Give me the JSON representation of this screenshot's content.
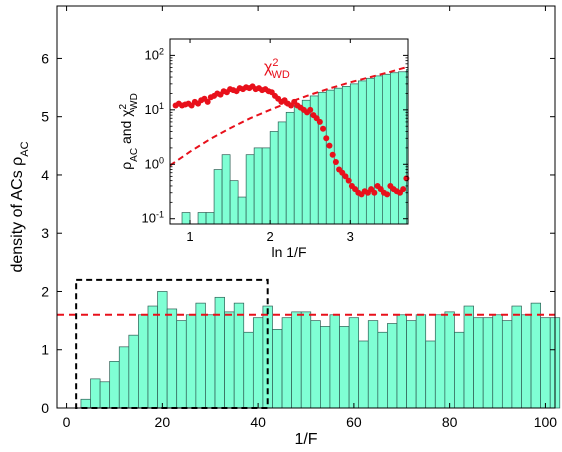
{
  "colors": {
    "bar_fill": "#7FFFD4",
    "bar_edge": "#2E5E54",
    "fit_line": "#E8101B",
    "box": "#000000",
    "points": "#E8101B"
  },
  "chart_data": [
    {
      "type": "bar",
      "xlabel": "1/F",
      "ylabel": "density of ACs  ρ",
      "ylabel_sub": "AC",
      "xlim": [
        -2,
        102
      ],
      "ylim": [
        0,
        6.9
      ],
      "xticks": [
        "0",
        "20",
        "40",
        "60",
        "80",
        "100"
      ],
      "yticks": [
        "0",
        "1",
        "2",
        "3",
        "4",
        "5",
        "6"
      ],
      "bin_width": 2,
      "bin_start": 3,
      "values": [
        0.15,
        0.5,
        0.45,
        0.8,
        1.05,
        1.25,
        1.6,
        1.75,
        2.0,
        1.7,
        1.5,
        1.6,
        1.8,
        1.6,
        1.9,
        1.65,
        1.8,
        1.3,
        1.55,
        1.75,
        1.35,
        1.55,
        1.65,
        1.65,
        1.5,
        1.4,
        1.6,
        1.4,
        1.55,
        1.15,
        1.5,
        1.3,
        1.45,
        1.6,
        1.5,
        1.6,
        1.15,
        1.6,
        1.65,
        1.3,
        1.75,
        1.55,
        1.55,
        1.6,
        1.5,
        1.75,
        1.6,
        1.8,
        1.55,
        1.55
      ],
      "reference_line": {
        "y": 1.6,
        "style": "dashed"
      },
      "highlight_box": {
        "x": [
          2,
          42
        ],
        "y": [
          0,
          2.2
        ],
        "style": "dashed"
      }
    },
    {
      "type": "bar",
      "xlabel": "ln 1/F",
      "ylabel": "ρ",
      "ylabel_sub": "AC",
      "ylabel_mid": " and χ",
      "ylabel_sup2": "2",
      "ylabel_sub2": "WD",
      "yscale": "log",
      "xlim": [
        0.75,
        3.72
      ],
      "ylim": [
        0.08,
        200
      ],
      "xticks": [
        1,
        2,
        3
      ],
      "yticks": [
        {
          "value": 0.1,
          "base": "10",
          "exp": "-1"
        },
        {
          "value": 1,
          "base": "10",
          "exp": "0"
        },
        {
          "value": 10,
          "base": "10",
          "exp": "1"
        },
        {
          "value": 100,
          "base": "10",
          "exp": "2"
        }
      ],
      "bin_start": 0.8,
      "bin_width": 0.1,
      "values": [
        0.08,
        0.13,
        0.08,
        0.13,
        0.13,
        0.8,
        1.5,
        0.5,
        0.25,
        1.5,
        2,
        2,
        4,
        6,
        9,
        12,
        15,
        18,
        21,
        23,
        25,
        27,
        30,
        34,
        38,
        42,
        45,
        48,
        50,
        55
      ],
      "series": [
        {
          "name": "χ",
          "name_sup": "2",
          "name_sub": "WD",
          "type": "scatter",
          "x": [
            0.82,
            0.86,
            0.9,
            0.94,
            0.98,
            1.02,
            1.06,
            1.1,
            1.14,
            1.18,
            1.22,
            1.26,
            1.3,
            1.34,
            1.38,
            1.42,
            1.46,
            1.5,
            1.54,
            1.58,
            1.62,
            1.66,
            1.7,
            1.74,
            1.78,
            1.82,
            1.86,
            1.9,
            1.94,
            1.98,
            2.02,
            2.06,
            2.1,
            2.14,
            2.18,
            2.22,
            2.26,
            2.3,
            2.34,
            2.38,
            2.42,
            2.46,
            2.5,
            2.54,
            2.58,
            2.62,
            2.66,
            2.7,
            2.74,
            2.78,
            2.82,
            2.86,
            2.9,
            2.94,
            2.98,
            3.02,
            3.06,
            3.1,
            3.14,
            3.18,
            3.22,
            3.26,
            3.3,
            3.34,
            3.38,
            3.42,
            3.46,
            3.5,
            3.54,
            3.58,
            3.62,
            3.66,
            3.7
          ],
          "y": [
            12,
            13,
            12,
            12.5,
            13,
            12,
            14,
            13,
            15,
            16,
            14,
            17,
            18,
            20,
            19,
            22,
            21,
            24,
            23,
            22,
            25,
            24,
            26,
            25,
            27,
            24,
            25,
            23,
            24,
            22,
            21,
            18,
            16,
            14,
            15,
            13,
            12,
            14,
            12,
            11,
            10,
            9,
            10,
            8,
            7,
            6,
            4.5,
            3,
            2.2,
            1.5,
            1.1,
            0.8,
            0.7,
            0.6,
            0.5,
            0.4,
            0.35,
            0.3,
            0.28,
            0.32,
            0.3,
            0.35,
            0.3,
            0.4,
            0.35,
            0.3,
            0.28,
            0.4,
            0.35,
            0.32,
            0.3,
            0.35,
            0.55
          ]
        },
        {
          "type": "line",
          "style": "dashed",
          "x": [
            0.75,
            1.0,
            1.25,
            1.5,
            1.75,
            2.0,
            2.25,
            2.5,
            2.75,
            3.0,
            3.25,
            3.5,
            3.72
          ],
          "y": [
            0.95,
            1.7,
            2.9,
            4.6,
            7,
            10,
            14,
            19,
            25,
            32,
            40,
            50,
            62
          ]
        }
      ]
    }
  ]
}
